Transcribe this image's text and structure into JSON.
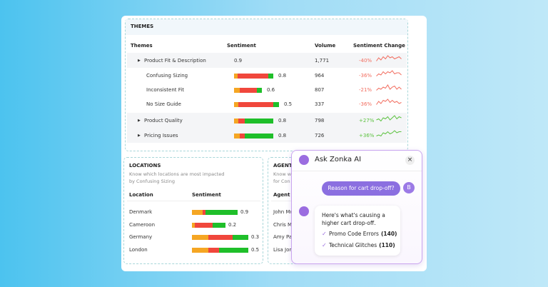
{
  "colors": {
    "negative": "#f26d5f",
    "positive": "#5cc23f",
    "bar": [
      "#f5a623",
      "#f0473c",
      "#1fbf2a"
    ]
  },
  "themes": {
    "title": "THEMES",
    "columns": [
      "Themes",
      "Sentiment",
      "Volume",
      "Sentiment Change"
    ],
    "rows": [
      {
        "name": "Product Fit & Description",
        "expandable": true,
        "score": "0.9",
        "bar": null,
        "volume": "1,771",
        "change": "-40%",
        "trend": [
          3,
          6,
          4,
          7,
          5,
          8,
          6,
          7,
          5,
          6,
          7,
          5
        ]
      },
      {
        "name": "Confusing Sizing",
        "expandable": false,
        "score": "0.8",
        "bar": [
          5,
          43,
          7
        ],
        "volume": "964",
        "change": "-36%",
        "trend": [
          3,
          5,
          4,
          7,
          5,
          7,
          6,
          8,
          5,
          6,
          6,
          4
        ]
      },
      {
        "name": "Inconsistent Fit",
        "expandable": false,
        "score": "0.6",
        "bar": [
          8,
          24,
          7
        ],
        "volume": "807",
        "change": "-21%",
        "trend": [
          3,
          5,
          4,
          6,
          5,
          8,
          4,
          6,
          7,
          4,
          6,
          4
        ]
      },
      {
        "name": "No Size Guide",
        "expandable": false,
        "score": "0.5",
        "bar": [
          6,
          49,
          8
        ],
        "volume": "337",
        "change": "-36%",
        "trend": [
          3,
          6,
          4,
          7,
          6,
          8,
          5,
          7,
          5,
          6,
          4,
          5
        ]
      },
      {
        "name": "Product Quality",
        "expandable": true,
        "score": "0.8",
        "bar": [
          6,
          9,
          40
        ],
        "volume": "798",
        "change": "+27%",
        "trend": [
          4,
          5,
          3,
          6,
          5,
          7,
          4,
          6,
          8,
          5,
          7,
          6
        ]
      },
      {
        "name": "Pricing Issues",
        "expandable": true,
        "score": "0.8",
        "bar": [
          8,
          7,
          40
        ],
        "volume": "726",
        "change": "+36%",
        "trend": [
          3,
          4,
          3,
          6,
          5,
          7,
          5,
          6,
          8,
          6,
          7,
          7
        ]
      }
    ]
  },
  "locations": {
    "title": "LOCATIONS",
    "subtitle": [
      "Know which locations are most impacted",
      "by Confusing Sizing"
    ],
    "columns": [
      "Location",
      "Sentiment"
    ],
    "rows": [
      {
        "name": "Denmark",
        "score": "0.9",
        "bar": [
          15,
          4,
          45
        ]
      },
      {
        "name": "Cameroon",
        "score": "0.2",
        "bar": [
          4,
          25,
          18
        ]
      },
      {
        "name": "Germany",
        "score": "0.3",
        "bar": [
          23,
          34,
          22
        ]
      },
      {
        "name": "London",
        "score": "0.5",
        "bar": [
          23,
          15,
          41
        ]
      }
    ]
  },
  "agents": {
    "title": "AGENT",
    "subtitle": [
      "Know w",
      "for Con"
    ],
    "columns": [
      "Agent"
    ],
    "rows": [
      "John Mu",
      "Chris M",
      "Amy Pa",
      "Lisa Jor"
    ]
  },
  "assistant": {
    "title": "Ask Zonka AI",
    "user_message": "Reason for cart drop-off?",
    "user_initial": "B",
    "reply": "Here's what's causing a higher cart drop-off.",
    "items": [
      {
        "label": "Promo Code Errors",
        "count": "(140)"
      },
      {
        "label": "Technical Glitches",
        "count": "(110)"
      }
    ]
  }
}
